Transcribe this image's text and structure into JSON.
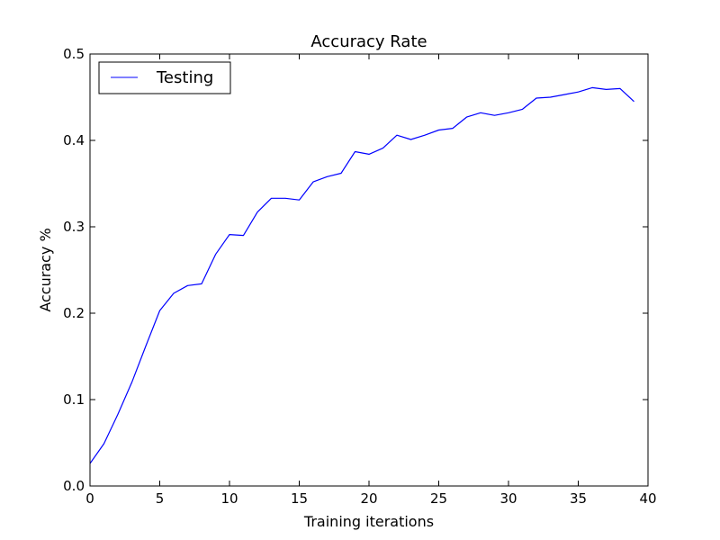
{
  "chart_data": {
    "type": "line",
    "title": "Accuracy Rate",
    "xlabel": "Training iterations",
    "ylabel": "Accuracy %",
    "xlim": [
      0,
      40
    ],
    "ylim": [
      0,
      0.5
    ],
    "xticks": [
      0,
      5,
      10,
      15,
      20,
      25,
      30,
      35,
      40
    ],
    "xtick_labels": [
      "0",
      "5",
      "10",
      "15",
      "20",
      "25",
      "30",
      "35",
      "40"
    ],
    "yticks": [
      0,
      0.1,
      0.2,
      0.3,
      0.4,
      0.5
    ],
    "ytick_labels": [
      "0.0",
      "0.1",
      "0.2",
      "0.3",
      "0.4",
      "0.5"
    ],
    "grid": false,
    "legend": "top-left",
    "series": [
      {
        "name": "Testing",
        "color": "#0000ff",
        "x": [
          0,
          1,
          2,
          3,
          4,
          5,
          6,
          7,
          8,
          9,
          10,
          11,
          12,
          13,
          14,
          15,
          16,
          17,
          18,
          19,
          20,
          21,
          22,
          23,
          24,
          25,
          26,
          27,
          28,
          29,
          30,
          31,
          32,
          33,
          34,
          35,
          36,
          37,
          38,
          39
        ],
        "y": [
          0.026,
          0.049,
          0.083,
          0.12,
          0.162,
          0.203,
          0.223,
          0.232,
          0.234,
          0.268,
          0.291,
          0.29,
          0.317,
          0.333,
          0.333,
          0.331,
          0.352,
          0.358,
          0.362,
          0.387,
          0.384,
          0.391,
          0.406,
          0.401,
          0.406,
          0.412,
          0.414,
          0.427,
          0.432,
          0.429,
          0.432,
          0.436,
          0.449,
          0.45,
          0.453,
          0.456,
          0.461,
          0.459,
          0.46,
          0.445
        ]
      }
    ]
  }
}
